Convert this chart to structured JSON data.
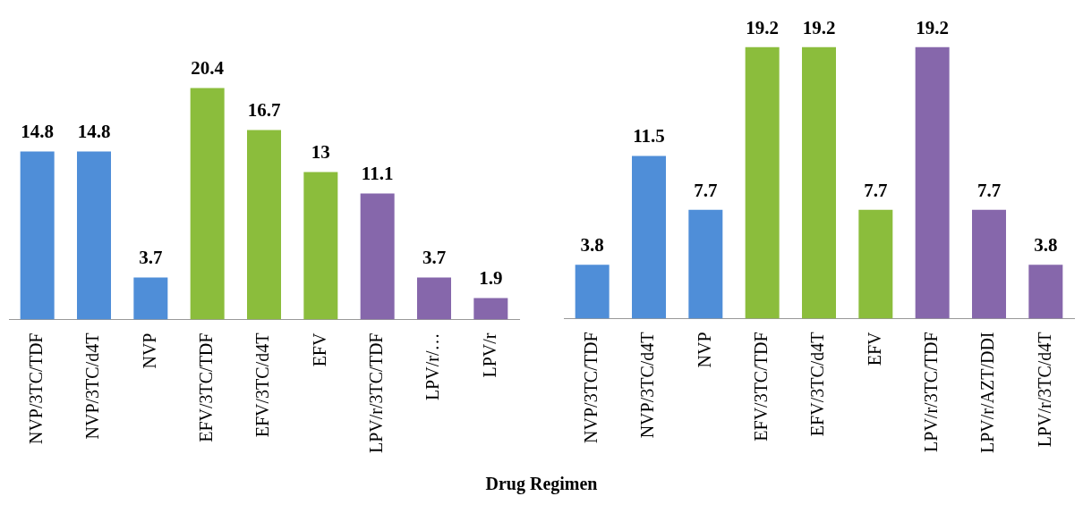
{
  "chart_data": [
    {
      "type": "bar",
      "xlabel": "Drug Regimen",
      "categories": [
        "NVP/3TC/TDF",
        "NVP/3TC/d4T",
        "NVP",
        "EFV/3TC/TDF",
        "EFV/3TC/d4T",
        "EFV",
        "LPV/r/3TC/TDF",
        "LPV/r/…",
        "LPV/r"
      ],
      "values": [
        14.8,
        14.8,
        3.7,
        20.4,
        16.7,
        13,
        11.1,
        3.7,
        1.9
      ],
      "colors": [
        "#4f8ed8",
        "#4f8ed8",
        "#4f8ed8",
        "#8bbd3c",
        "#8bbd3c",
        "#8bbd3c",
        "#8667ab",
        "#8667ab",
        "#8667ab"
      ],
      "tick_labels": "x",
      "data_labels": true
    },
    {
      "type": "bar",
      "categories": [
        "NVP/3TC/TDF",
        "NVP/3TC/d4T",
        "NVP",
        "EFV/3TC/TDF",
        "EFV/3TC/d4T",
        "EFV",
        "LPV/r/3TC/TDF",
        "LPV/r/AZT/DDI",
        "LPV/r/3TC/d4T"
      ],
      "values": [
        3.8,
        11.5,
        7.7,
        19.2,
        19.2,
        7.7,
        19.2,
        7.7,
        3.8
      ],
      "colors": [
        "#4f8ed8",
        "#4f8ed8",
        "#4f8ed8",
        "#8bbd3c",
        "#8bbd3c",
        "#8bbd3c",
        "#8667ab",
        "#8667ab",
        "#8667ab"
      ],
      "tick_labels": "x",
      "data_labels": true
    }
  ]
}
